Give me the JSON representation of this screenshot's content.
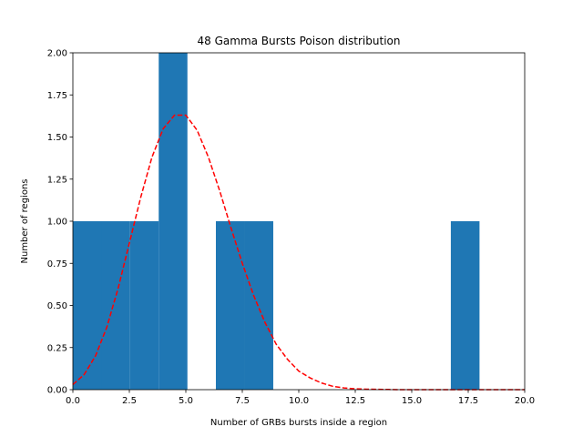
{
  "chart_data": {
    "type": "bar",
    "title": "48 Gamma Bursts Poison distribution",
    "xlabel": "Number of GRBs bursts inside a region",
    "ylabel": "Number of regions",
    "xlim": [
      0,
      20
    ],
    "ylim": [
      0,
      2.0
    ],
    "xticks": [
      "0.0",
      "2.5",
      "5.0",
      "7.5",
      "10.0",
      "12.5",
      "15.0",
      "17.5",
      "20.0"
    ],
    "yticks": [
      "0.00",
      "0.25",
      "0.50",
      "0.75",
      "1.00",
      "1.25",
      "1.50",
      "1.75",
      "2.00"
    ],
    "histogram": {
      "bins": [
        {
          "x0": 0.0,
          "x1": 1.27,
          "count": 1
        },
        {
          "x0": 1.27,
          "x1": 2.53,
          "count": 1
        },
        {
          "x0": 2.53,
          "x1": 3.8,
          "count": 1
        },
        {
          "x0": 3.8,
          "x1": 5.07,
          "count": 2
        },
        {
          "x0": 6.33,
          "x1": 7.6,
          "count": 1
        },
        {
          "x0": 7.6,
          "x1": 8.87,
          "count": 1
        },
        {
          "x0": 16.73,
          "x1": 18.0,
          "count": 1
        }
      ],
      "color": "#1f77b4"
    },
    "fit_curve": {
      "style": "dashed",
      "color": "#ff0000",
      "x": [
        0,
        0.5,
        1,
        1.5,
        2,
        2.5,
        3,
        3.5,
        4,
        4.5,
        5,
        5.5,
        6,
        6.5,
        7,
        7.5,
        8,
        8.5,
        9,
        9.5,
        10,
        10.5,
        11,
        11.5,
        12,
        12.5,
        13,
        13.5,
        14,
        14.5,
        15,
        15.5,
        16,
        16.5,
        17,
        17.5,
        18,
        18.5,
        19,
        19.5,
        20
      ],
      "y": [
        0.03,
        0.09,
        0.2,
        0.37,
        0.6,
        0.87,
        1.14,
        1.38,
        1.55,
        1.63,
        1.63,
        1.54,
        1.38,
        1.18,
        0.96,
        0.75,
        0.56,
        0.4,
        0.27,
        0.18,
        0.11,
        0.07,
        0.04,
        0.02,
        0.01,
        0.005,
        0.003,
        0.002,
        0.001,
        0.0,
        0.0,
        0.0,
        0.0,
        0.0,
        0.0,
        0.0,
        0.0,
        0.0,
        0.0,
        0.0,
        0.0
      ]
    }
  }
}
